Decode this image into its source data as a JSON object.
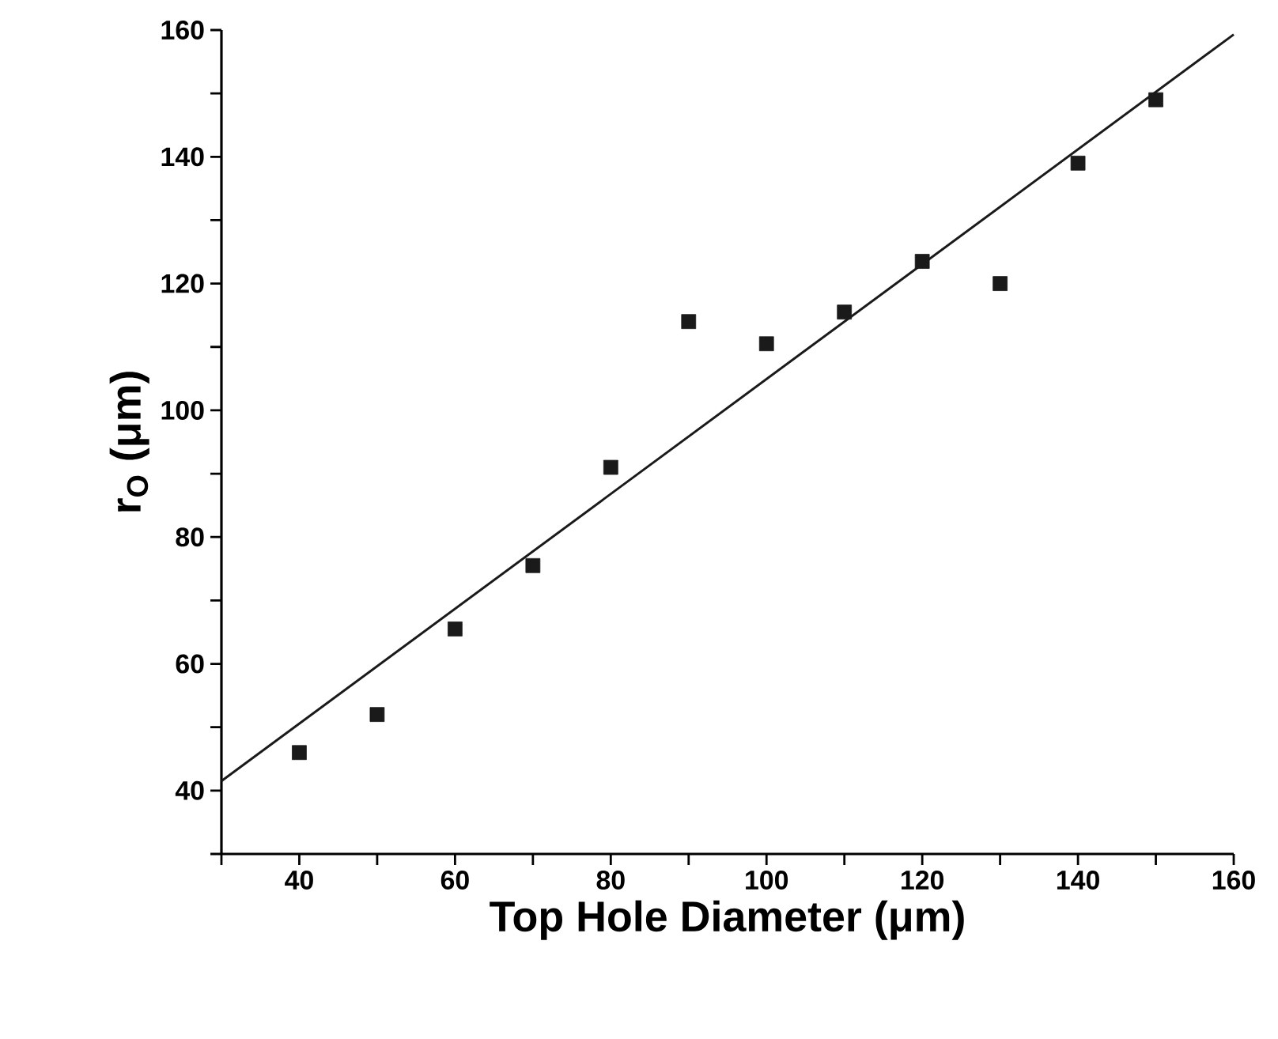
{
  "chart_data": {
    "type": "scatter",
    "xlabel": "Top Hole Diameter (μm)",
    "ylabel": "r$_{O}$ (μm)",
    "xlim": [
      30,
      160
    ],
    "ylim": [
      30,
      160
    ],
    "xticks": [
      {
        "value": 30,
        "label": null
      },
      40,
      {
        "value": 50,
        "label": null
      },
      60,
      {
        "value": 70,
        "label": null
      },
      80,
      {
        "value": 90,
        "label": null
      },
      100,
      {
        "value": 110,
        "label": null
      },
      120,
      {
        "value": 130,
        "label": null
      },
      140,
      {
        "value": 150,
        "label": null
      },
      160
    ],
    "yticks": [
      {
        "value": 30,
        "label": null
      },
      40,
      {
        "value": 50,
        "label": null
      },
      60,
      {
        "value": 70,
        "label": null
      },
      80,
      {
        "value": 90,
        "label": null
      },
      100,
      {
        "value": 110,
        "label": null
      },
      120,
      {
        "value": 130,
        "label": null
      },
      140,
      {
        "value": 150,
        "label": null
      },
      160
    ],
    "series": [
      {
        "marker": "square",
        "color": "#1a1a1a",
        "x": [
          40,
          50,
          60,
          70,
          80,
          90,
          100,
          110,
          120,
          130,
          140,
          150
        ],
        "values": [
          46,
          52,
          65.5,
          75.5,
          91,
          114,
          110.5,
          115.5,
          123.5,
          120,
          139,
          149
        ]
      },
      {
        "type": "line",
        "marker": "none",
        "color": "#1a1a1a",
        "x": [
          30,
          160
        ],
        "values": [
          41.5,
          159.3
        ]
      }
    ]
  }
}
